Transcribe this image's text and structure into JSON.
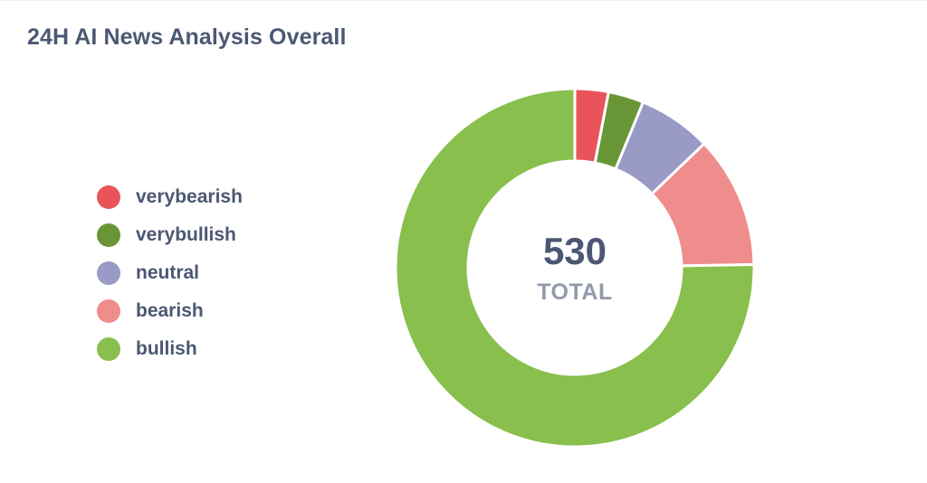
{
  "card": {
    "title": "24H AI News Analysis Overall"
  },
  "center": {
    "value": "530",
    "label": "TOTAL"
  },
  "chart_data": {
    "type": "pie",
    "title": "24H AI News Analysis Overall",
    "total": 530,
    "legend_position": "left",
    "categories": [
      "verybearish",
      "verybullish",
      "neutral",
      "bearish",
      "bullish"
    ],
    "values": [
      16,
      17,
      35,
      63,
      399
    ],
    "colors": [
      "#e9545a",
      "#689636",
      "#999ac6",
      "#ef8c8c",
      "#88bf4d"
    ]
  }
}
